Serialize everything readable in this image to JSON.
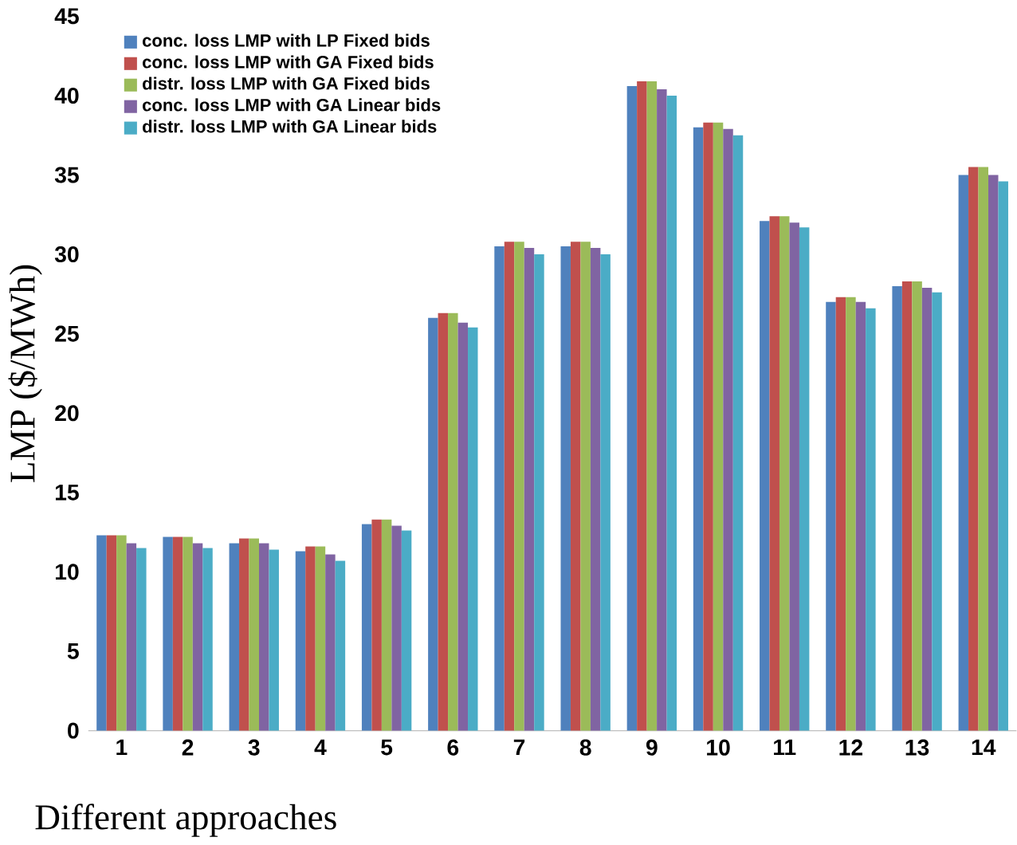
{
  "chart_data": {
    "type": "bar",
    "xlabel": "Different approaches",
    "ylabel": "LMP ($/MWh)",
    "categories": [
      "1",
      "2",
      "3",
      "4",
      "5",
      "6",
      "7",
      "8",
      "9",
      "10",
      "11",
      "12",
      "13",
      "14"
    ],
    "ylim": [
      0,
      45
    ],
    "yticks": [
      0,
      5,
      10,
      15,
      20,
      25,
      30,
      35,
      40,
      45
    ],
    "grid": false,
    "legend": "top left",
    "series": [
      {
        "name": "conc. loss LMP with LP Fixed bids",
        "color": "#4f81bd",
        "values": [
          12.3,
          12.2,
          11.8,
          11.3,
          13.0,
          26.0,
          30.5,
          30.5,
          40.6,
          38.0,
          32.1,
          27.0,
          28.0,
          35.0
        ]
      },
      {
        "name": "conc. loss LMP with GA Fixed bids",
        "color": "#c0504d",
        "values": [
          12.3,
          12.2,
          12.1,
          11.6,
          13.3,
          26.3,
          30.8,
          30.8,
          40.9,
          38.3,
          32.4,
          27.3,
          28.3,
          35.5
        ]
      },
      {
        "name": "distr. loss LMP with GA Fixed bids",
        "color": "#9bbb59",
        "values": [
          12.3,
          12.2,
          12.1,
          11.6,
          13.3,
          26.3,
          30.8,
          30.8,
          40.9,
          38.3,
          32.4,
          27.3,
          28.3,
          35.5
        ]
      },
      {
        "name": "conc. loss LMP with GA Linear bids",
        "color": "#8064a2",
        "values": [
          11.8,
          11.8,
          11.8,
          11.1,
          12.9,
          25.7,
          30.4,
          30.4,
          40.4,
          37.9,
          32.0,
          27.0,
          27.9,
          35.0
        ]
      },
      {
        "name": "distr. loss LMP with GA Linear bids",
        "color": "#4bacc6",
        "values": [
          11.5,
          11.5,
          11.4,
          10.7,
          12.6,
          25.4,
          30.0,
          30.0,
          40.0,
          37.5,
          31.7,
          26.6,
          27.6,
          34.6
        ]
      }
    ]
  }
}
